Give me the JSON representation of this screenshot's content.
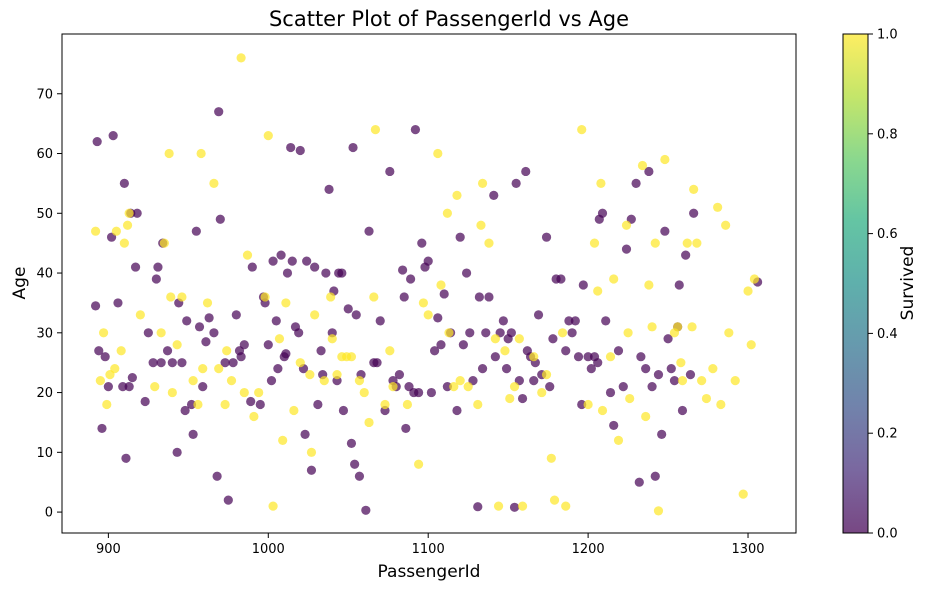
{
  "chart_data": {
    "type": "scatter",
    "title": "Scatter Plot of PassengerId vs Age",
    "xlabel": "PassengerId",
    "ylabel": "Age",
    "xlim": [
      871,
      1330
    ],
    "ylim": [
      -3.5,
      80
    ],
    "xticks": [
      900,
      1000,
      1100,
      1200,
      1300
    ],
    "yticks": [
      0,
      10,
      20,
      30,
      40,
      50,
      60,
      70
    ],
    "grid": false,
    "colorbar": {
      "label": "Survived",
      "range": [
        0,
        1
      ],
      "ticks": [
        "0.0",
        "0.2",
        "0.4",
        "0.6",
        "0.8",
        "1.0"
      ],
      "colormap": "viridis"
    },
    "marker_alpha": 0.7,
    "series": [
      {
        "survived": 0,
        "color": "#440154",
        "points": [
          [
            892,
            34.5
          ],
          [
            893,
            62
          ],
          [
            894,
            27
          ],
          [
            896,
            14
          ],
          [
            898,
            26
          ],
          [
            900,
            21
          ],
          [
            902,
            46
          ],
          [
            903,
            63
          ],
          [
            906,
            35
          ],
          [
            909,
            21
          ],
          [
            910,
            55
          ],
          [
            911,
            9
          ],
          [
            913,
            21
          ],
          [
            914,
            50
          ],
          [
            915,
            22.5
          ],
          [
            917,
            41
          ],
          [
            918,
            50
          ],
          [
            923,
            18.5
          ],
          [
            925,
            30
          ],
          [
            928,
            25
          ],
          [
            930,
            39
          ],
          [
            931,
            41
          ],
          [
            933,
            25
          ],
          [
            934,
            45
          ],
          [
            937,
            27
          ],
          [
            940,
            25
          ],
          [
            943,
            10
          ],
          [
            944,
            35
          ],
          [
            946,
            25
          ],
          [
            948,
            17
          ],
          [
            949,
            32
          ],
          [
            952,
            18
          ],
          [
            953,
            13
          ],
          [
            955,
            47
          ],
          [
            957,
            31
          ],
          [
            959,
            21
          ],
          [
            961,
            28.5
          ],
          [
            963,
            32.5
          ],
          [
            966,
            30
          ],
          [
            968,
            6
          ],
          [
            969,
            67
          ],
          [
            970,
            49
          ],
          [
            973,
            25
          ],
          [
            975,
            2
          ],
          [
            978,
            25
          ],
          [
            980,
            33
          ],
          [
            982,
            27
          ],
          [
            983,
            26
          ],
          [
            985,
            28
          ],
          [
            989,
            18.5
          ],
          [
            990,
            41
          ],
          [
            995,
            18
          ],
          [
            997,
            36
          ],
          [
            998,
            35
          ],
          [
            1000,
            28
          ],
          [
            1002,
            22
          ],
          [
            1003,
            42
          ],
          [
            1005,
            32
          ],
          [
            1006,
            24
          ],
          [
            1008,
            43
          ],
          [
            1010,
            26
          ],
          [
            1011,
            26.5
          ],
          [
            1012,
            40
          ],
          [
            1014,
            61
          ],
          [
            1015,
            42
          ],
          [
            1017,
            31
          ],
          [
            1019,
            30
          ],
          [
            1020,
            60.5
          ],
          [
            1022,
            24
          ],
          [
            1023,
            13
          ],
          [
            1024,
            42
          ],
          [
            1027,
            7
          ],
          [
            1029,
            41
          ],
          [
            1031,
            18
          ],
          [
            1033,
            27
          ],
          [
            1034,
            23
          ],
          [
            1036,
            40
          ],
          [
            1038,
            54
          ],
          [
            1040,
            30
          ],
          [
            1041,
            37
          ],
          [
            1043,
            22
          ],
          [
            1044,
            40
          ],
          [
            1046,
            40
          ],
          [
            1047,
            17
          ],
          [
            1050,
            34
          ],
          [
            1052,
            11.5
          ],
          [
            1053,
            61
          ],
          [
            1054,
            8
          ],
          [
            1055,
            33
          ],
          [
            1057,
            6
          ],
          [
            1058,
            23
          ],
          [
            1061,
            0.3
          ],
          [
            1063,
            47
          ],
          [
            1066,
            25
          ],
          [
            1068,
            25
          ],
          [
            1070,
            32
          ],
          [
            1073,
            17
          ],
          [
            1076,
            57
          ],
          [
            1078,
            22
          ],
          [
            1080,
            21
          ],
          [
            1082,
            23
          ],
          [
            1084,
            40.5
          ],
          [
            1085,
            36
          ],
          [
            1086,
            14
          ],
          [
            1088,
            21
          ],
          [
            1089,
            39
          ],
          [
            1091,
            20
          ],
          [
            1092,
            64
          ],
          [
            1094,
            20
          ],
          [
            1096,
            45
          ],
          [
            1098,
            41
          ],
          [
            1100,
            42
          ],
          [
            1102,
            20
          ],
          [
            1104,
            27
          ],
          [
            1106,
            32.5
          ],
          [
            1108,
            28
          ],
          [
            1110,
            36.5
          ],
          [
            1112,
            21
          ],
          [
            1114,
            30
          ],
          [
            1118,
            17
          ],
          [
            1120,
            46
          ],
          [
            1122,
            28
          ],
          [
            1124,
            40
          ],
          [
            1126,
            30
          ],
          [
            1128,
            22
          ],
          [
            1131,
            0.9
          ],
          [
            1132,
            36
          ],
          [
            1134,
            24
          ],
          [
            1136,
            30
          ],
          [
            1138,
            36
          ],
          [
            1141,
            53
          ],
          [
            1142,
            26
          ],
          [
            1145,
            30
          ],
          [
            1147,
            32
          ],
          [
            1149,
            24
          ],
          [
            1150,
            29
          ],
          [
            1152,
            30
          ],
          [
            1154,
            0.8
          ],
          [
            1155,
            55
          ],
          [
            1157,
            22
          ],
          [
            1159,
            19
          ],
          [
            1161,
            57
          ],
          [
            1162,
            27
          ],
          [
            1164,
            26
          ],
          [
            1166,
            22
          ],
          [
            1167,
            25
          ],
          [
            1169,
            33
          ],
          [
            1171,
            23
          ],
          [
            1174,
            46
          ],
          [
            1176,
            21
          ],
          [
            1178,
            29
          ],
          [
            1180,
            39
          ],
          [
            1183,
            39
          ],
          [
            1186,
            27
          ],
          [
            1188,
            32
          ],
          [
            1190,
            30
          ],
          [
            1192,
            32
          ],
          [
            1194,
            26
          ],
          [
            1196,
            18
          ],
          [
            1197,
            38
          ],
          [
            1200,
            26
          ],
          [
            1202,
            24
          ],
          [
            1204,
            26
          ],
          [
            1206,
            25
          ],
          [
            1207,
            49
          ],
          [
            1209,
            50
          ],
          [
            1211,
            32
          ],
          [
            1214,
            20
          ],
          [
            1216,
            14.5
          ],
          [
            1219,
            27
          ],
          [
            1222,
            21
          ],
          [
            1224,
            44
          ],
          [
            1227,
            49
          ],
          [
            1230,
            55
          ],
          [
            1232,
            5
          ],
          [
            1233,
            26
          ],
          [
            1236,
            24
          ],
          [
            1238,
            57
          ],
          [
            1240,
            21
          ],
          [
            1242,
            6
          ],
          [
            1244,
            23
          ],
          [
            1246,
            13
          ],
          [
            1248,
            47
          ],
          [
            1250,
            29
          ],
          [
            1252,
            24
          ],
          [
            1254,
            22
          ],
          [
            1256,
            31
          ],
          [
            1257,
            38
          ],
          [
            1259,
            17
          ],
          [
            1261,
            43
          ],
          [
            1264,
            23
          ],
          [
            1266,
            50
          ],
          [
            1306,
            38.5
          ]
        ]
      },
      {
        "survived": 1,
        "color": "#fde725",
        "points": [
          [
            892,
            47
          ],
          [
            895,
            22
          ],
          [
            897,
            30
          ],
          [
            899,
            18
          ],
          [
            901,
            23
          ],
          [
            904,
            24
          ],
          [
            905,
            47
          ],
          [
            908,
            27
          ],
          [
            910,
            45
          ],
          [
            912,
            48
          ],
          [
            913,
            50
          ],
          [
            920,
            33
          ],
          [
            929,
            21
          ],
          [
            933,
            30
          ],
          [
            935,
            45
          ],
          [
            938,
            60
          ],
          [
            939,
            36
          ],
          [
            940,
            20
          ],
          [
            943,
            28
          ],
          [
            946,
            36
          ],
          [
            953,
            22
          ],
          [
            956,
            18
          ],
          [
            958,
            60
          ],
          [
            959,
            24
          ],
          [
            962,
            35
          ],
          [
            966,
            55
          ],
          [
            969,
            24
          ],
          [
            973,
            18
          ],
          [
            974,
            27
          ],
          [
            977,
            22
          ],
          [
            983,
            76
          ],
          [
            985,
            20
          ],
          [
            987,
            43
          ],
          [
            991,
            16
          ],
          [
            994,
            20
          ],
          [
            998,
            36
          ],
          [
            1000,
            63
          ],
          [
            1003,
            1
          ],
          [
            1007,
            29
          ],
          [
            1009,
            12
          ],
          [
            1011,
            35
          ],
          [
            1016,
            17
          ],
          [
            1020,
            25
          ],
          [
            1026,
            23
          ],
          [
            1027,
            10
          ],
          [
            1029,
            33
          ],
          [
            1035,
            22
          ],
          [
            1039,
            36
          ],
          [
            1040,
            29
          ],
          [
            1043,
            23
          ],
          [
            1046,
            26
          ],
          [
            1049,
            26
          ],
          [
            1052,
            26
          ],
          [
            1057,
            22
          ],
          [
            1060,
            20
          ],
          [
            1063,
            15
          ],
          [
            1066,
            36
          ],
          [
            1067,
            64
          ],
          [
            1073,
            18
          ],
          [
            1076,
            27
          ],
          [
            1078,
            21
          ],
          [
            1087,
            18
          ],
          [
            1094,
            8
          ],
          [
            1097,
            35
          ],
          [
            1100,
            33
          ],
          [
            1106,
            60
          ],
          [
            1108,
            38
          ],
          [
            1112,
            50
          ],
          [
            1113,
            30
          ],
          [
            1116,
            21
          ],
          [
            1118,
            53
          ],
          [
            1120,
            22
          ],
          [
            1125,
            21
          ],
          [
            1131,
            18
          ],
          [
            1133,
            48
          ],
          [
            1134,
            55
          ],
          [
            1138,
            45
          ],
          [
            1142,
            29
          ],
          [
            1144,
            1
          ],
          [
            1148,
            27
          ],
          [
            1151,
            19
          ],
          [
            1154,
            21
          ],
          [
            1157,
            29
          ],
          [
            1159,
            1
          ],
          [
            1166,
            26
          ],
          [
            1171,
            20
          ],
          [
            1174,
            23
          ],
          [
            1177,
            9
          ],
          [
            1179,
            2
          ],
          [
            1184,
            30
          ],
          [
            1186,
            1
          ],
          [
            1196,
            64
          ],
          [
            1200,
            18
          ],
          [
            1204,
            45
          ],
          [
            1206,
            37
          ],
          [
            1208,
            55
          ],
          [
            1209,
            17
          ],
          [
            1214,
            26
          ],
          [
            1216,
            39
          ],
          [
            1219,
            12
          ],
          [
            1224,
            48
          ],
          [
            1225,
            30
          ],
          [
            1226,
            19
          ],
          [
            1234,
            58
          ],
          [
            1236,
            16
          ],
          [
            1238,
            38
          ],
          [
            1240,
            31
          ],
          [
            1242,
            45
          ],
          [
            1244,
            0.2
          ],
          [
            1248,
            59
          ],
          [
            1254,
            30
          ],
          [
            1256,
            31
          ],
          [
            1258,
            25
          ],
          [
            1259,
            22
          ],
          [
            1262,
            45
          ],
          [
            1265,
            31
          ],
          [
            1266,
            54
          ],
          [
            1268,
            45
          ],
          [
            1271,
            22
          ],
          [
            1274,
            19
          ],
          [
            1278,
            24
          ],
          [
            1281,
            51
          ],
          [
            1283,
            18
          ],
          [
            1286,
            48
          ],
          [
            1288,
            30
          ],
          [
            1292,
            22
          ],
          [
            1297,
            3
          ],
          [
            1300,
            37
          ],
          [
            1302,
            28
          ],
          [
            1304,
            39
          ]
        ]
      }
    ]
  }
}
